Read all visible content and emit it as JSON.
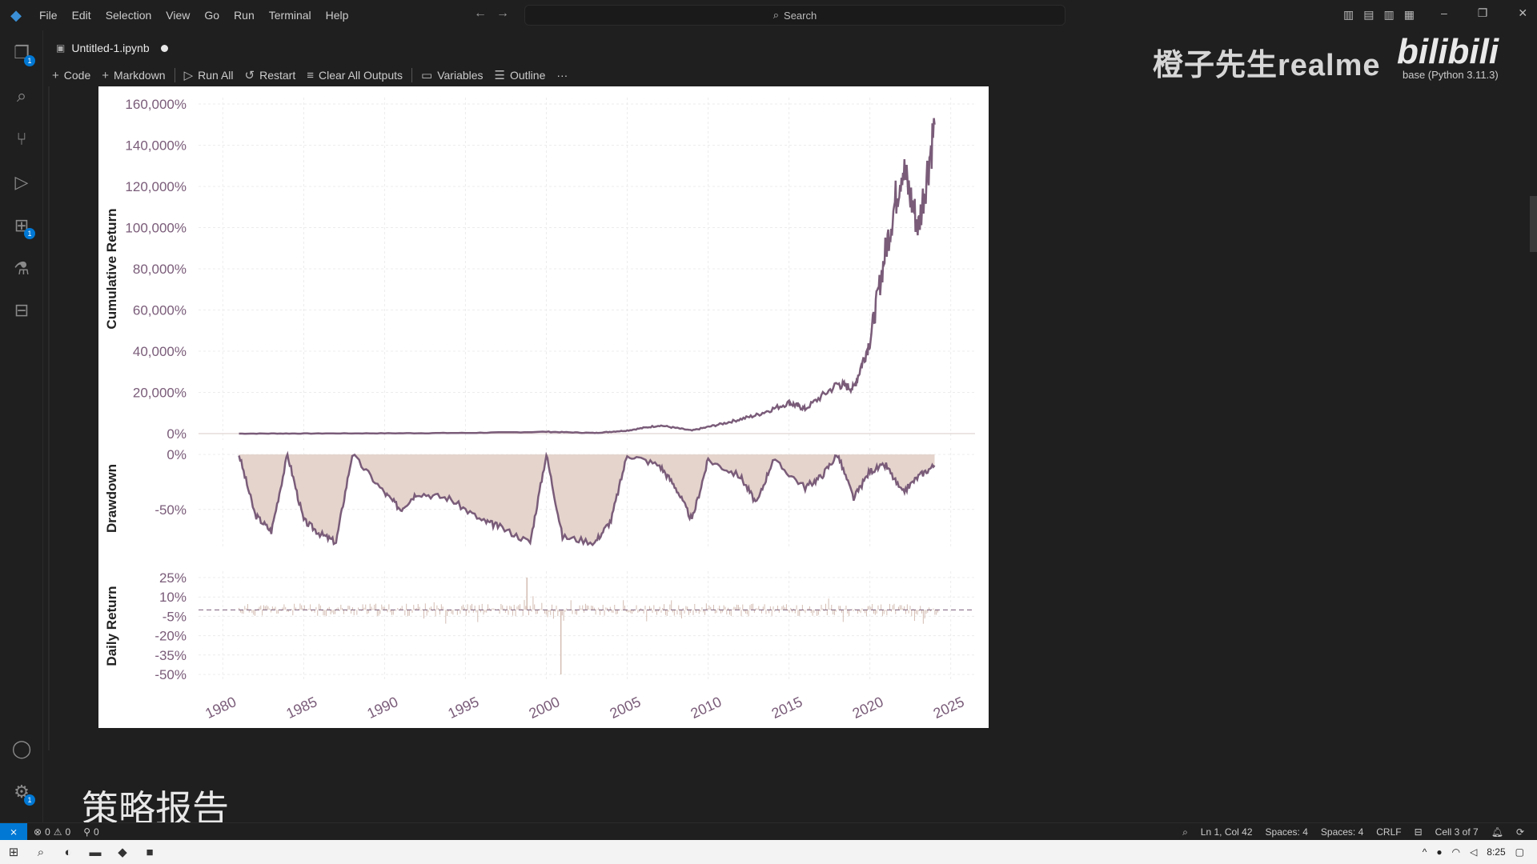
{
  "menu": [
    "File",
    "Edit",
    "Selection",
    "View",
    "Go",
    "Run",
    "Terminal",
    "Help"
  ],
  "search": {
    "label": "Search"
  },
  "tab": {
    "title": "Untitled-1.ipynb"
  },
  "toolbar": {
    "code": "Code",
    "markdown": "Markdown",
    "run_all": "Run All",
    "restart": "Restart",
    "clear_all_outputs": "Clear All Outputs",
    "variables": "Variables",
    "outline": "Outline",
    "more": "···"
  },
  "watermark": {
    "text": "橙子先生realme",
    "logo": "bilibili"
  },
  "kernel": {
    "label": "base (Python 3.11.3)"
  },
  "activity_badges": {
    "explorer": "1",
    "extensions": "1",
    "settings": "1"
  },
  "icons": [
    "vscode-logo",
    "explorer-icon",
    "search-icon",
    "source-control-icon",
    "run-debug-icon",
    "extensions-icon",
    "testing-icon",
    "remote-explorer-icon",
    "account-icon",
    "settings-gear-icon"
  ],
  "chart_data": [
    {
      "type": "line",
      "ylabel": "Cumulative Return",
      "y_ticks": [
        "160,000%",
        "140,000%",
        "120,000%",
        "100,000%",
        "80,000%",
        "60,000%",
        "40,000%",
        "20,000%",
        "0%"
      ],
      "ylim": [
        0,
        160000
      ],
      "x": [
        1981,
        1985,
        1990,
        1995,
        2000,
        2003,
        2005,
        2007,
        2009,
        2011,
        2013,
        2015,
        2016,
        2018,
        2019,
        2020,
        2021,
        2022,
        2023,
        2024
      ],
      "values": [
        0,
        50,
        150,
        300,
        900,
        300,
        1500,
        4000,
        1500,
        5000,
        9000,
        15000,
        12000,
        24000,
        22000,
        45000,
        90000,
        130000,
        100000,
        150000
      ],
      "color": "#7a5c79"
    },
    {
      "type": "area",
      "ylabel": "Drawdown",
      "y_ticks": [
        "0%",
        "-50%"
      ],
      "ylim": [
        -80,
        0
      ],
      "x": [
        1981,
        1982,
        1983,
        1984,
        1985,
        1986,
        1987,
        1988,
        1990,
        1991,
        1992,
        1994,
        1996,
        1997,
        1999,
        2000,
        2001,
        2003,
        2004,
        2005,
        2007,
        2008,
        2009,
        2010,
        2012,
        2013,
        2014,
        2016,
        2017,
        2018,
        2019,
        2020,
        2021,
        2022,
        2023,
        2024
      ],
      "values": [
        0,
        -55,
        -70,
        0,
        -60,
        -72,
        -80,
        0,
        -35,
        -50,
        -35,
        -40,
        -60,
        -65,
        -80,
        0,
        -75,
        -80,
        -60,
        0,
        -10,
        -30,
        -60,
        -5,
        -20,
        -45,
        -5,
        -30,
        -20,
        0,
        -40,
        -15,
        -10,
        -35,
        -20,
        -10
      ],
      "color": "#7a5c79",
      "fill": "#e4d4cc"
    },
    {
      "type": "bar",
      "ylabel": "Daily Return",
      "y_ticks": [
        "25%",
        "10%",
        "-5%",
        "-20%",
        "-35%",
        "-50%"
      ],
      "ylim": [
        -50,
        25
      ],
      "color": "#d4bdb3",
      "x_ticks": [
        "1980",
        "1985",
        "1990",
        "1995",
        "2000",
        "2005",
        "2010",
        "2015",
        "2020",
        "2025"
      ]
    }
  ],
  "report_title": "策略报告",
  "status": {
    "errors": "0",
    "warnings": "0",
    "ports": "0",
    "position": "Ln 1, Col 42",
    "spaces1": "Spaces: 4",
    "spaces2": "Spaces: 4",
    "eol": "CRLF",
    "cell": "Cell 3 of 7"
  },
  "taskbar": {
    "time": "8:25"
  }
}
